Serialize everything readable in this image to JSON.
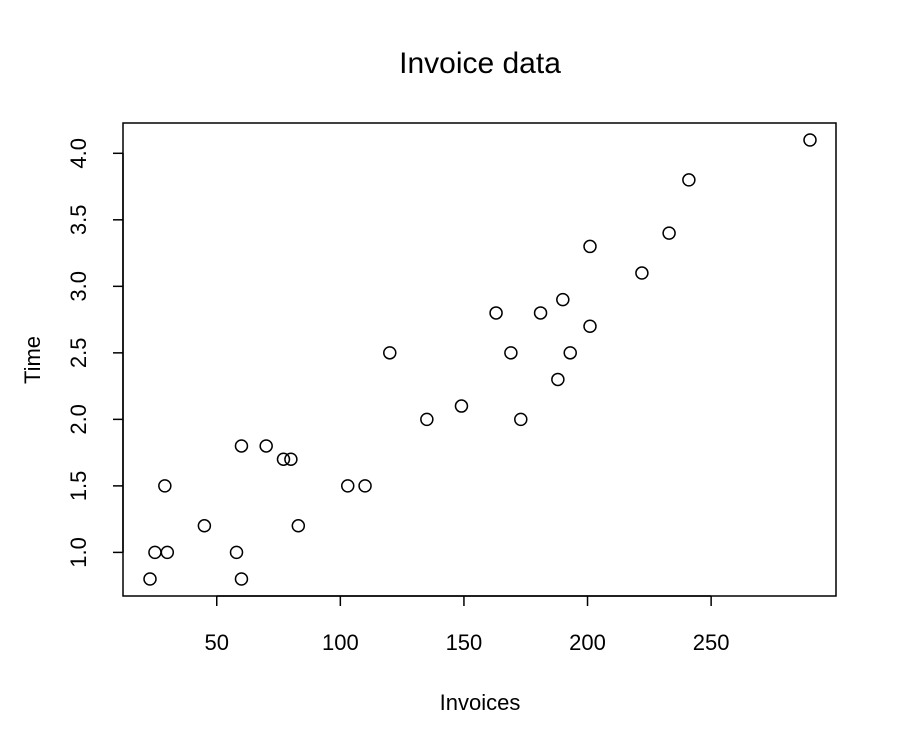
{
  "chart_data": {
    "type": "scatter",
    "title": "Invoice data",
    "xlabel": "Invoices",
    "ylabel": "Time",
    "xlim": [
      23,
      290
    ],
    "ylim": [
      0.8,
      4.1
    ],
    "x_ticks": [
      50,
      100,
      150,
      200,
      250
    ],
    "y_ticks": [
      1.0,
      1.5,
      2.0,
      2.5,
      3.0,
      3.5,
      4.0
    ],
    "x_tick_labels": [
      "50",
      "100",
      "150",
      "200",
      "250"
    ],
    "y_tick_labels": [
      "1.0",
      "1.5",
      "2.0",
      "2.5",
      "3.0",
      "3.5",
      "4.0"
    ],
    "grid": false,
    "marker": "open-circle",
    "colors": {
      "point": "#000000",
      "axis": "#000000",
      "background": "#ffffff"
    },
    "points": [
      {
        "x": 23,
        "y": 0.8
      },
      {
        "x": 25,
        "y": 1.0
      },
      {
        "x": 29,
        "y": 1.5
      },
      {
        "x": 30,
        "y": 1.0
      },
      {
        "x": 45,
        "y": 1.2
      },
      {
        "x": 58,
        "y": 1.0
      },
      {
        "x": 60,
        "y": 1.8
      },
      {
        "x": 60,
        "y": 0.8
      },
      {
        "x": 70,
        "y": 1.8
      },
      {
        "x": 77,
        "y": 1.7
      },
      {
        "x": 80,
        "y": 1.7
      },
      {
        "x": 83,
        "y": 1.2
      },
      {
        "x": 103,
        "y": 1.5
      },
      {
        "x": 110,
        "y": 1.5
      },
      {
        "x": 120,
        "y": 2.5
      },
      {
        "x": 135,
        "y": 2.0
      },
      {
        "x": 149,
        "y": 2.1
      },
      {
        "x": 163,
        "y": 2.8
      },
      {
        "x": 169,
        "y": 2.5
      },
      {
        "x": 173,
        "y": 2.0
      },
      {
        "x": 181,
        "y": 2.8
      },
      {
        "x": 188,
        "y": 2.3
      },
      {
        "x": 190,
        "y": 2.9
      },
      {
        "x": 193,
        "y": 2.5
      },
      {
        "x": 201,
        "y": 3.3
      },
      {
        "x": 201,
        "y": 2.7
      },
      {
        "x": 222,
        "y": 3.1
      },
      {
        "x": 233,
        "y": 3.4
      },
      {
        "x": 241,
        "y": 3.8
      },
      {
        "x": 290,
        "y": 4.1
      }
    ]
  }
}
